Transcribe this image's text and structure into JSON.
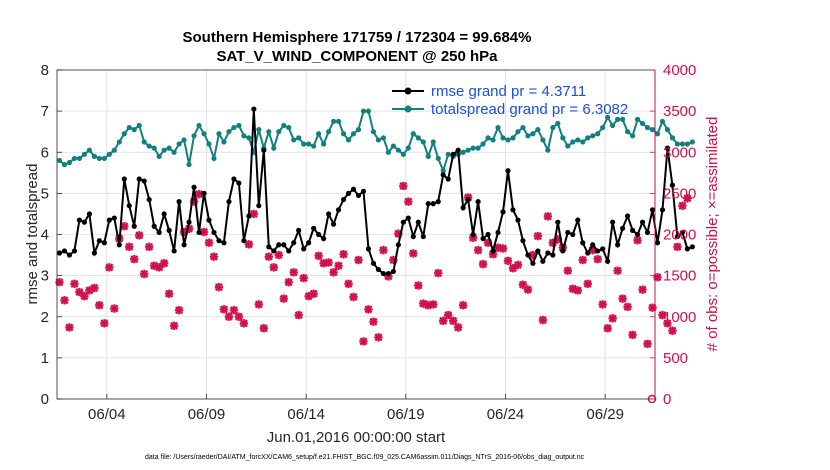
{
  "chart_data": {
    "type": "line",
    "title_line1": "Southern Hemisphere 171759 / 172304 = 99.684%",
    "title_line2": "SAT_V_WIND_COMPONENT @ 250 hPa",
    "xlabel": "Jun.01,2016 00:00:00 start",
    "ylabel_left": "rmse and totalspread",
    "ylabel_right": "# of obs: o=possible; ×=assimilated",
    "footer": "data file: /Users/raeder/DAI/ATM_forcXX/CAM6_setup/f.e21.FHIST_BGC.f09_025.CAM6assim.011/Diags_NTrS_2016-06/obs_diag_output.nc",
    "x_range_days": [
      1.5,
      31.5
    ],
    "ylim_left": [
      0,
      8
    ],
    "ylim_right": [
      0,
      4000
    ],
    "yticks_left": [
      0,
      1,
      2,
      3,
      4,
      5,
      6,
      7,
      8
    ],
    "yticks_right": [
      0,
      500,
      1000,
      1500,
      2000,
      2500,
      3000,
      3500,
      4000
    ],
    "x_tick_days": [
      4,
      9,
      14,
      19,
      24,
      29
    ],
    "x_tick_labels": [
      "06/04",
      "06/09",
      "06/14",
      "06/19",
      "06/24",
      "06/29"
    ],
    "legend_position": "top-right",
    "colors": {
      "rmse": "#000000",
      "spread": "#13807f",
      "obs": "#d0104c",
      "right_axis": "#d0104c"
    },
    "series": [
      {
        "name": "rmse grand pr = 4.3711",
        "axis": "left",
        "values": [
          3.55,
          3.6,
          3.5,
          3.6,
          4.35,
          4.3,
          4.5,
          3.55,
          3.85,
          3.8,
          4.35,
          4.4,
          3.75,
          5.35,
          4.7,
          4.2,
          5.35,
          5.3,
          4.85,
          4.2,
          4.05,
          4.5,
          4.1,
          3.6,
          4.8,
          3.75,
          4.3,
          5.15,
          4.05,
          5.0,
          4.35,
          4.05,
          3.85,
          3.8,
          4.8,
          5.35,
          5.25,
          3.85,
          4.45,
          7.05,
          4.7,
          6.05,
          3.7,
          3.6,
          3.75,
          3.75,
          3.6,
          3.8,
          4.1,
          3.65,
          3.8,
          4.15,
          4.0,
          3.9,
          4.5,
          4.25,
          4.6,
          4.85,
          5.0,
          5.1,
          4.95,
          5.05,
          3.65,
          3.3,
          3.15,
          3.05,
          3.05,
          3.1,
          3.75,
          4.3,
          4.4,
          3.95,
          4.3,
          3.95,
          4.75,
          4.75,
          4.8,
          5.45,
          5.35,
          5.95,
          6.05,
          4.65,
          4.85,
          4.0,
          4.8,
          3.9,
          4.0,
          3.6,
          4.05,
          4.55,
          5.55,
          4.6,
          4.35,
          3.85,
          3.5,
          3.3,
          3.6,
          3.35,
          3.55,
          3.5,
          4.3,
          3.6,
          4.05,
          4.0,
          4.35,
          3.8,
          3.55,
          3.75,
          3.6,
          3.65,
          3.35,
          4.3,
          3.75,
          4.15,
          4.45,
          4.1,
          4.0,
          4.3,
          4.05,
          4.6,
          3.8,
          4.6,
          6.1,
          5.2,
          3.95,
          4.05,
          3.65,
          3.7
        ]
      },
      {
        "name": "totalspread grand pr = 6.3082",
        "axis": "left",
        "values": [
          5.8,
          5.7,
          5.75,
          5.85,
          5.85,
          5.95,
          6.05,
          5.9,
          5.85,
          5.85,
          5.95,
          6.05,
          6.25,
          6.45,
          6.6,
          6.55,
          6.65,
          6.25,
          6.15,
          6.1,
          5.9,
          6.05,
          6.1,
          6.0,
          6.2,
          6.3,
          5.7,
          6.4,
          6.65,
          6.45,
          6.2,
          5.85,
          6.45,
          6.25,
          6.5,
          6.6,
          6.65,
          6.4,
          6.35,
          6.0,
          6.55,
          6.1,
          6.5,
          6.1,
          6.5,
          6.65,
          6.6,
          6.3,
          6.35,
          6.2,
          6.2,
          6.15,
          6.45,
          6.2,
          6.5,
          6.75,
          6.75,
          6.45,
          6.3,
          6.45,
          6.55,
          7.0,
          7.0,
          6.5,
          6.3,
          6.35,
          6.0,
          6.15,
          6.05,
          5.95,
          6.1,
          6.45,
          6.35,
          6.25,
          5.9,
          6.25,
          5.85,
          5.55,
          5.95,
          5.9,
          5.95,
          6.0,
          6.05,
          6.1,
          6.1,
          6.2,
          6.35,
          6.3,
          6.6,
          6.35,
          6.3,
          6.35,
          6.5,
          6.6,
          6.4,
          6.45,
          6.55,
          6.3,
          6.05,
          6.6,
          6.7,
          6.35,
          6.15,
          6.25,
          6.3,
          6.25,
          6.35,
          6.4,
          6.45,
          6.6,
          6.85,
          6.65,
          6.8,
          6.8,
          6.5,
          6.4,
          6.8,
          6.7,
          6.6,
          6.55,
          6.45,
          6.75,
          6.55,
          6.35,
          6.2,
          6.2,
          6.2,
          6.25
        ]
      },
      {
        "name": "obs assimilated",
        "axis": "right",
        "values": [
          1420,
          1200,
          870,
          1400,
          1300,
          1250,
          1320,
          1350,
          1140,
          920,
          1600,
          1100,
          1950,
          2100,
          1850,
          1700,
          1990,
          1520,
          1850,
          1620,
          1600,
          1650,
          1280,
          890,
          1080,
          2030,
          2070,
          2400,
          2490,
          2030,
          1900,
          1730,
          1360,
          1090,
          1000,
          1080,
          1000,
          920,
          1880,
          2250,
          1150,
          860,
          1730,
          1600,
          1750,
          1220,
          1420,
          1540,
          1020,
          1470,
          1250,
          1280,
          1740,
          1650,
          1660,
          1540,
          1620,
          1760,
          1400,
          1240,
          1690,
          700,
          1090,
          940,
          750,
          1810,
          1490,
          1690,
          2010,
          2590,
          2400,
          1770,
          1380,
          1160,
          1140,
          1150,
          1530,
          950,
          1020,
          950,
          870,
          1140,
          2450,
          1960,
          1810,
          1640,
          1900,
          1760,
          1840,
          1830,
          1680,
          1590,
          1630,
          1390,
          1330,
          1750,
          1980,
          960,
          2220,
          1900,
          1940,
          1840,
          1560,
          1340,
          1320,
          1690,
          1400,
          1810,
          1700,
          1150,
          860,
          980,
          1560,
          1220,
          1120,
          780,
          1930,
          1330,
          670,
          1110,
          1480,
          1020,
          920,
          830,
          1850,
          2350,
          2440
        ]
      },
      {
        "name": "obs possible",
        "axis": "right",
        "values": [
          1420,
          1200,
          870,
          1400,
          1300,
          1250,
          1320,
          1350,
          1140,
          920,
          1600,
          1100,
          1950,
          2100,
          1850,
          1700,
          1990,
          1520,
          1850,
          1620,
          1600,
          1650,
          1280,
          890,
          1080,
          2030,
          2070,
          2400,
          2490,
          2030,
          1900,
          1730,
          1360,
          1090,
          1000,
          1080,
          1000,
          920,
          1880,
          2250,
          1150,
          860,
          1730,
          1600,
          1750,
          1220,
          1420,
          1540,
          1020,
          1470,
          1250,
          1280,
          1740,
          1650,
          1660,
          1540,
          1620,
          1760,
          1400,
          1240,
          1690,
          700,
          1090,
          940,
          750,
          1810,
          1490,
          1690,
          2010,
          2590,
          2400,
          1770,
          1380,
          1160,
          1140,
          1150,
          1530,
          950,
          1020,
          950,
          870,
          1140,
          2450,
          1960,
          1810,
          1640,
          1900,
          1760,
          1840,
          1830,
          1680,
          1590,
          1630,
          1390,
          1330,
          1750,
          1980,
          960,
          2220,
          1900,
          1940,
          1840,
          1560,
          1340,
          1320,
          1690,
          1400,
          1810,
          1700,
          1150,
          860,
          980,
          1560,
          1220,
          1120,
          780,
          1930,
          1330,
          670,
          1110,
          1480,
          1020,
          920,
          830,
          1850,
          2350,
          2440
        ]
      }
    ]
  }
}
